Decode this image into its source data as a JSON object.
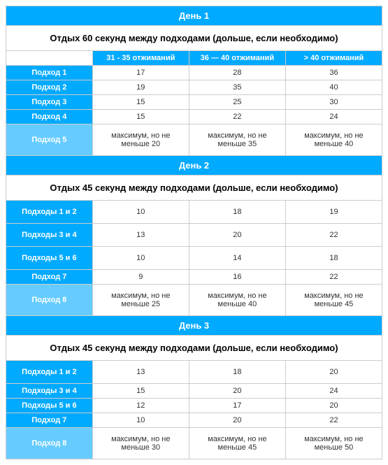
{
  "colors": {
    "header_bg": "#00aaff",
    "alt_bg": "#66ccff",
    "border": "#cccccc",
    "text_dark": "#333333"
  },
  "days": [
    {
      "title": "День 1",
      "rest": "Отдых 60 секунд между подходами (дольше, если необходимо)",
      "columns": [
        "31 - 35 отжиманий",
        "36 — 40 отжиманий",
        "> 40 отжиманий"
      ],
      "rows": [
        {
          "label": "Подход 1",
          "vals": [
            "17",
            "28",
            "36"
          ],
          "alt": false,
          "tall": false
        },
        {
          "label": "Подход 2",
          "vals": [
            "19",
            "35",
            "40"
          ],
          "alt": false,
          "tall": false
        },
        {
          "label": "Подход 3",
          "vals": [
            "15",
            "25",
            "30"
          ],
          "alt": false,
          "tall": false
        },
        {
          "label": "Подход 4",
          "vals": [
            "15",
            "22",
            "24"
          ],
          "alt": false,
          "tall": false
        },
        {
          "label": "Подход 5",
          "vals": [
            "максимум, но не меньше 20",
            "максимум, но не меньше 35",
            "максимум, но не меньше 40"
          ],
          "alt": true,
          "tall": true
        }
      ]
    },
    {
      "title": "День 2",
      "rest": "Отдых 45 секунд между подходами (дольше, если необходимо)",
      "columns": [
        "",
        "",
        ""
      ],
      "rows": [
        {
          "label": "Подходы 1 и 2",
          "vals": [
            "10",
            "18",
            "19"
          ],
          "alt": false,
          "tall": true
        },
        {
          "label": "Подходы 3 и 4",
          "vals": [
            "13",
            "20",
            "22"
          ],
          "alt": false,
          "tall": true
        },
        {
          "label": "Подходы 5 и 6",
          "vals": [
            "10",
            "14",
            "18"
          ],
          "alt": false,
          "tall": true
        },
        {
          "label": "Подход 7",
          "vals": [
            "9",
            "16",
            "22"
          ],
          "alt": false,
          "tall": false
        },
        {
          "label": "Подход 8",
          "vals": [
            "максимум, но не меньше 25",
            "максимум, но не меньше 40",
            "максимум, но не меньше 45"
          ],
          "alt": true,
          "tall": true
        }
      ]
    },
    {
      "title": "День 3",
      "rest": "Отдых 45 секунд между подходами (дольше, если необходимо)",
      "columns": [
        "",
        "",
        ""
      ],
      "rows": [
        {
          "label": "Подходы 1 и 2",
          "vals": [
            "13",
            "18",
            "20"
          ],
          "alt": false,
          "tall": true
        },
        {
          "label": "Подходы 3 и 4",
          "vals": [
            "15",
            "20",
            "24"
          ],
          "alt": false,
          "tall": false
        },
        {
          "label": "Подходы 5 и 6",
          "vals": [
            "12",
            "17",
            "20"
          ],
          "alt": false,
          "tall": false
        },
        {
          "label": "Подход 7",
          "vals": [
            "10",
            "20",
            "22"
          ],
          "alt": false,
          "tall": false
        },
        {
          "label": "Подход 8",
          "vals": [
            "максимум, но не меньше 30",
            "максимум, но не меньше 45",
            "максимум, но не меньше 50"
          ],
          "alt": true,
          "tall": true
        }
      ]
    }
  ]
}
